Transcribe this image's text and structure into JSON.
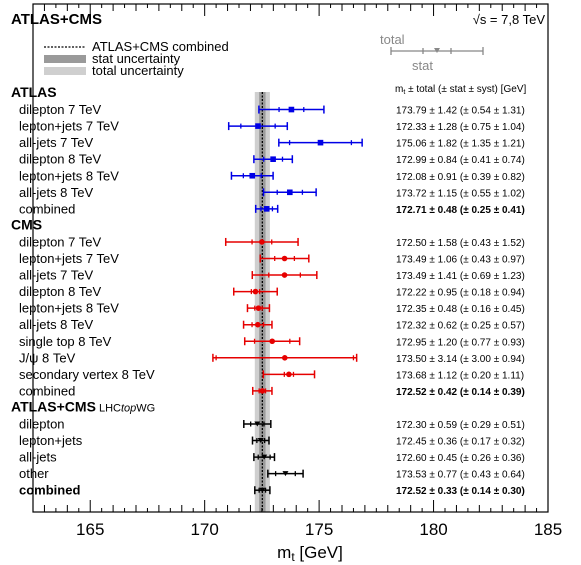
{
  "chart_data": {
    "type": "scatter",
    "title": "ATLAS+CMS",
    "energy_label": "√s = 7,8 TeV",
    "xlabel": "m",
    "xlabel_sub": "t",
    "xlabel_unit": " [GeV]",
    "xlim": [
      162.5,
      185
    ],
    "xticks": [
      165,
      170,
      175,
      180,
      185
    ],
    "combined_band": {
      "center": 172.52,
      "stat": 0.14,
      "total": 0.33,
      "line_label": "ATLAS+CMS combined",
      "stat_label": "stat uncertainty",
      "total_label": "total uncertainty"
    },
    "error_key": {
      "total": "total",
      "stat": "stat"
    },
    "column_header": {
      "prefix": "m",
      "sub": "t",
      "text": " ± total (± stat ± syst) [GeV]"
    },
    "colors": {
      "ATLAS": "#0000e6",
      "CMS": "#e60000",
      "Combination": "#000000"
    },
    "groups": [
      {
        "name": "ATLAS",
        "color": "#0000e6",
        "rows": [
          {
            "label": "dilepton 7 TeV",
            "value": 173.79,
            "total": 1.42,
            "stat": 0.54,
            "syst": 1.31,
            "text": "173.79 ± 1.42 (± 0.54 ± 1.31)"
          },
          {
            "label": "lepton+jets 7 TeV",
            "value": 172.33,
            "total": 1.28,
            "stat": 0.75,
            "syst": 1.04,
            "text": "172.33 ± 1.28 (± 0.75 ± 1.04)"
          },
          {
            "label": "all-jets 7 TeV",
            "value": 175.06,
            "total": 1.82,
            "stat": 1.35,
            "syst": 1.21,
            "text": "175.06 ± 1.82 (± 1.35 ± 1.21)"
          },
          {
            "label": "dilepton 8 TeV",
            "value": 172.99,
            "total": 0.84,
            "stat": 0.41,
            "syst": 0.74,
            "text": "172.99 ± 0.84 (± 0.41 ± 0.74)"
          },
          {
            "label": "lepton+jets 8 TeV",
            "value": 172.08,
            "total": 0.91,
            "stat": 0.39,
            "syst": 0.82,
            "text": "172.08 ± 0.91 (± 0.39 ± 0.82)"
          },
          {
            "label": "all-jets 8 TeV",
            "value": 173.72,
            "total": 1.15,
            "stat": 0.55,
            "syst": 1.02,
            "text": "173.72 ± 1.15 (± 0.55 ± 1.02)"
          },
          {
            "label": "combined",
            "value": 172.71,
            "total": 0.48,
            "stat": 0.25,
            "syst": 0.41,
            "text": "172.71 ± 0.48 (± 0.25 ± 0.41)",
            "bold": true
          }
        ]
      },
      {
        "name": "CMS",
        "color": "#e60000",
        "rows": [
          {
            "label": "dilepton 7 TeV",
            "value": 172.5,
            "total": 1.58,
            "stat": 0.43,
            "syst": 1.52,
            "text": "172.50 ± 1.58 (± 0.43 ± 1.52)"
          },
          {
            "label": "lepton+jets 7 TeV",
            "value": 173.49,
            "total": 1.06,
            "stat": 0.43,
            "syst": 0.97,
            "text": "173.49 ± 1.06 (± 0.43 ± 0.97)"
          },
          {
            "label": "all-jets 7 TeV",
            "value": 173.49,
            "total": 1.41,
            "stat": 0.69,
            "syst": 1.23,
            "text": "173.49 ± 1.41 (± 0.69 ± 1.23)"
          },
          {
            "label": "dilepton 8 TeV",
            "value": 172.22,
            "total": 0.95,
            "stat": 0.18,
            "syst": 0.94,
            "text": "172.22 ± 0.95 (± 0.18 ± 0.94)"
          },
          {
            "label": "lepton+jets 8 TeV",
            "value": 172.35,
            "total": 0.48,
            "stat": 0.16,
            "syst": 0.45,
            "text": "172.35 ± 0.48 (± 0.16 ± 0.45)"
          },
          {
            "label": "all-jets 8 TeV",
            "value": 172.32,
            "total": 0.62,
            "stat": 0.25,
            "syst": 0.57,
            "text": "172.32 ± 0.62 (± 0.25 ± 0.57)"
          },
          {
            "label": "single top 8 TeV",
            "value": 172.95,
            "total": 1.2,
            "stat": 0.77,
            "syst": 0.93,
            "text": "172.95 ± 1.20 (± 0.77 ± 0.93)"
          },
          {
            "label": "J/ψ 8 TeV",
            "value": 173.5,
            "total": 3.14,
            "stat": 3.0,
            "syst": 0.94,
            "text": "173.50 ± 3.14 (± 3.00 ± 0.94)"
          },
          {
            "label": "secondary vertex 8 TeV",
            "value": 173.68,
            "total": 1.12,
            "stat": 0.2,
            "syst": 1.11,
            "text": "173.68 ± 1.12 (± 0.20 ± 1.11)"
          },
          {
            "label": "combined",
            "value": 172.52,
            "total": 0.42,
            "stat": 0.14,
            "syst": 0.39,
            "text": "172.52 ± 0.42 (± 0.14 ± 0.39)",
            "bold": true
          }
        ]
      },
      {
        "name": "ATLAS+CMS",
        "name_suffix": "LHCtopWG",
        "color": "#000000",
        "rows": [
          {
            "label": "dilepton",
            "value": 172.3,
            "total": 0.59,
            "stat": 0.29,
            "syst": 0.51,
            "text": "172.30 ± 0.59 (± 0.29 ± 0.51)"
          },
          {
            "label": "lepton+jets",
            "value": 172.45,
            "total": 0.36,
            "stat": 0.17,
            "syst": 0.32,
            "text": "172.45 ± 0.36 (± 0.17 ± 0.32)"
          },
          {
            "label": "all-jets",
            "value": 172.6,
            "total": 0.45,
            "stat": 0.26,
            "syst": 0.36,
            "text": "172.60 ± 0.45 (± 0.26 ± 0.36)"
          },
          {
            "label": "other",
            "value": 173.53,
            "total": 0.77,
            "stat": 0.43,
            "syst": 0.64,
            "text": "173.53 ± 0.77 (± 0.43 ± 0.64)"
          },
          {
            "label": "combined",
            "value": 172.52,
            "total": 0.33,
            "stat": 0.14,
            "syst": 0.3,
            "text": "172.52 ± 0.33 (± 0.14 ± 0.30)",
            "bold": true,
            "bold_label": true
          }
        ]
      }
    ]
  }
}
